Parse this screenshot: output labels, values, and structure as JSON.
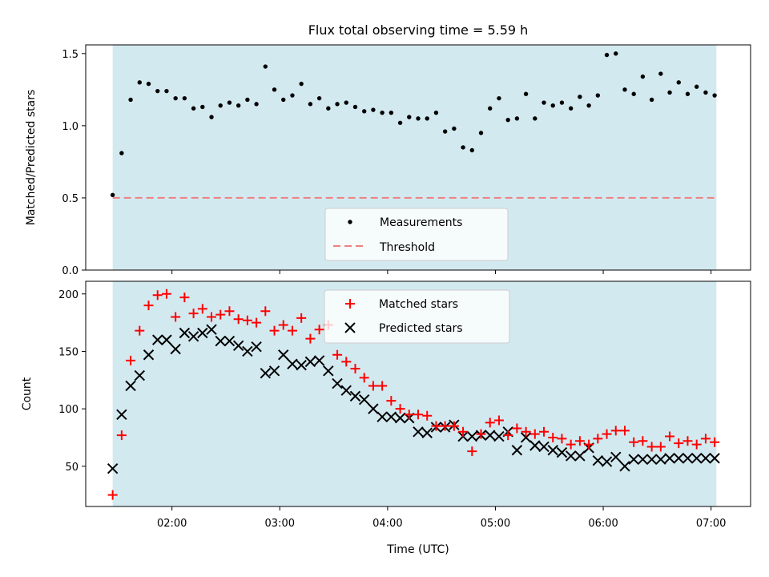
{
  "chart_data": [
    {
      "type": "scatter",
      "title": "Flux total observing time = 5.59 h",
      "xlabel": "",
      "ylabel": "Matched/Predicted stars",
      "ylim": [
        0,
        1.56
      ],
      "yticks": [
        "0.0",
        "0.5",
        "1.0",
        "1.5"
      ],
      "xlim": [
        "01:12",
        "07:22"
      ],
      "shaded_span": [
        "01:27",
        "07:03"
      ],
      "threshold": 0.5,
      "legend": {
        "position": "lower-center",
        "entries": [
          "Measurements",
          "Threshold"
        ]
      },
      "colors": {
        "measurements": "#000000",
        "threshold": "#f08080",
        "span": "#d3e9f0"
      },
      "series": [
        {
          "name": "Measurements",
          "x": [
            "01:27",
            "01:32",
            "01:37",
            "01:42",
            "01:47",
            "01:52",
            "01:57",
            "02:02",
            "02:07",
            "02:12",
            "02:17",
            "02:22",
            "02:27",
            "02:32",
            "02:37",
            "02:42",
            "02:47",
            "02:52",
            "02:57",
            "03:02",
            "03:07",
            "03:12",
            "03:17",
            "03:22",
            "03:27",
            "03:32",
            "03:37",
            "03:42",
            "03:47",
            "03:52",
            "03:57",
            "04:02",
            "04:07",
            "04:12",
            "04:17",
            "04:22",
            "04:27",
            "04:32",
            "04:37",
            "04:42",
            "04:47",
            "04:52",
            "04:57",
            "05:02",
            "05:07",
            "05:12",
            "05:17",
            "05:22",
            "05:27",
            "05:32",
            "05:37",
            "05:42",
            "05:47",
            "05:52",
            "05:57",
            "06:02",
            "06:07",
            "06:12",
            "06:17",
            "06:22",
            "06:27",
            "06:32",
            "06:37",
            "06:42",
            "06:47",
            "06:52",
            "06:57",
            "07:02"
          ],
          "values": [
            0.52,
            0.81,
            1.18,
            1.3,
            1.29,
            1.24,
            1.24,
            1.19,
            1.19,
            1.12,
            1.13,
            1.06,
            1.14,
            1.16,
            1.14,
            1.18,
            1.15,
            1.41,
            1.25,
            1.18,
            1.21,
            1.29,
            1.15,
            1.19,
            1.12,
            1.15,
            1.16,
            1.13,
            1.1,
            1.11,
            1.09,
            1.09,
            1.02,
            1.06,
            1.05,
            1.05,
            1.09,
            0.96,
            0.98,
            0.85,
            0.83,
            0.95,
            1.12,
            1.19,
            1.04,
            1.05,
            1.22,
            1.05,
            1.16,
            1.14,
            1.16,
            1.12,
            1.2,
            1.14,
            1.21,
            1.49,
            1.5,
            1.25,
            1.22,
            1.34,
            1.18,
            1.36,
            1.23,
            1.3,
            1.22,
            1.27,
            1.23,
            1.21
          ]
        }
      ]
    },
    {
      "type": "scatter",
      "title": "",
      "xlabel": "Time (UTC)",
      "ylabel": "Count",
      "ylim": [
        15,
        211
      ],
      "yticks": [
        "50",
        "100",
        "150",
        "200"
      ],
      "xlim": [
        "01:12",
        "07:22"
      ],
      "xticks": [
        "02:00",
        "03:00",
        "04:00",
        "05:00",
        "06:00",
        "07:00"
      ],
      "shaded_span": [
        "01:27",
        "07:03"
      ],
      "legend": {
        "position": "top-center",
        "entries": [
          "Matched stars",
          "Predicted stars"
        ]
      },
      "colors": {
        "matched": "#ff0000",
        "predicted": "#000000",
        "span": "#d3e9f0"
      },
      "x": [
        "01:27",
        "01:32",
        "01:37",
        "01:42",
        "01:47",
        "01:52",
        "01:57",
        "02:02",
        "02:07",
        "02:12",
        "02:17",
        "02:22",
        "02:27",
        "02:32",
        "02:37",
        "02:42",
        "02:47",
        "02:52",
        "02:57",
        "03:02",
        "03:07",
        "03:12",
        "03:17",
        "03:22",
        "03:27",
        "03:32",
        "03:37",
        "03:42",
        "03:47",
        "03:52",
        "03:57",
        "04:02",
        "04:07",
        "04:12",
        "04:17",
        "04:22",
        "04:27",
        "04:32",
        "04:37",
        "04:42",
        "04:47",
        "04:52",
        "04:57",
        "05:02",
        "05:07",
        "05:12",
        "05:17",
        "05:22",
        "05:27",
        "05:32",
        "05:37",
        "05:42",
        "05:47",
        "05:52",
        "05:57",
        "06:02",
        "06:07",
        "06:12",
        "06:17",
        "06:22",
        "06:27",
        "06:32",
        "06:37",
        "06:42",
        "06:47",
        "06:52",
        "06:57",
        "07:02"
      ],
      "series": [
        {
          "name": "Matched stars",
          "values": [
            25,
            77,
            142,
            168,
            190,
            199,
            200,
            180,
            197,
            183,
            187,
            180,
            182,
            185,
            178,
            177,
            175,
            185,
            168,
            173,
            168,
            179,
            161,
            169,
            173,
            147,
            141,
            135,
            127,
            120,
            120,
            107,
            100,
            95,
            95,
            94,
            85,
            85,
            85,
            80,
            63,
            78,
            88,
            90,
            77,
            83,
            80,
            78,
            80,
            75,
            74,
            69,
            72,
            69,
            74,
            78,
            81,
            81,
            71,
            72,
            67,
            67,
            76,
            70,
            72,
            69,
            74,
            71
          ]
        },
        {
          "name": "Predicted stars",
          "values": [
            48,
            95,
            120,
            129,
            147,
            160,
            160,
            152,
            166,
            163,
            166,
            169,
            159,
            159,
            155,
            150,
            154,
            131,
            133,
            147,
            139,
            138,
            141,
            142,
            133,
            122,
            116,
            111,
            108,
            100,
            93,
            93,
            92,
            92,
            80,
            79,
            84,
            84,
            86,
            76,
            76,
            77,
            77,
            76,
            80,
            64,
            75,
            68,
            67,
            64,
            62,
            59,
            59,
            66,
            55,
            54,
            58,
            50,
            56,
            56,
            56,
            56,
            57,
            57,
            57,
            57,
            57,
            57
          ]
        }
      ]
    }
  ]
}
